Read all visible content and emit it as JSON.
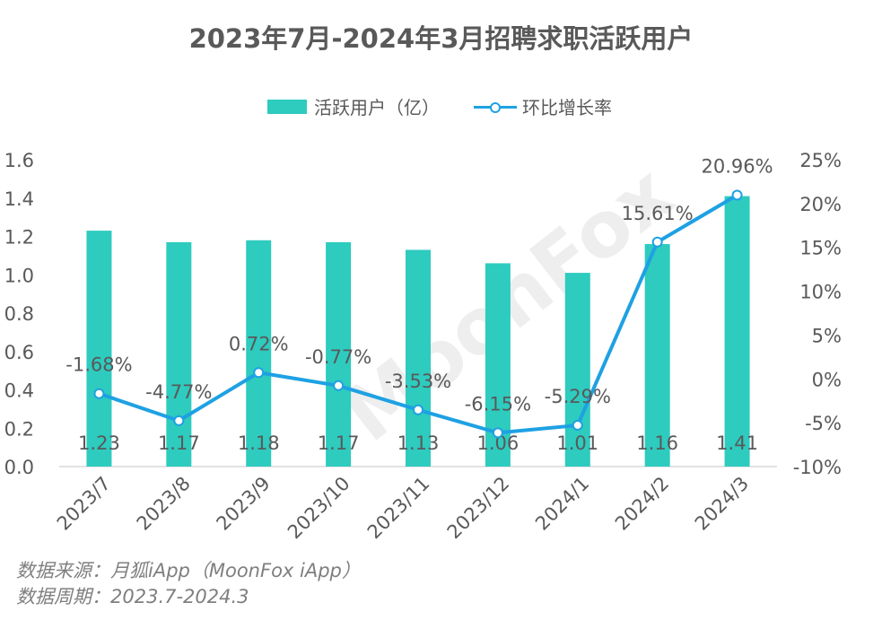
{
  "title": "2023年7月-2024年3月招聘求职活跃用户",
  "legend": {
    "bar_label": "活跃用户（亿）",
    "line_label": "环比增长率"
  },
  "colors": {
    "bar": "#2ecbbf",
    "line": "#1ea1e3",
    "text": "#595959",
    "axis": "#d9d9d9"
  },
  "chart_data": {
    "type": "bar",
    "title": "2023年7月-2024年3月招聘求职活跃用户",
    "categories": [
      "2023/7",
      "2023/8",
      "2023/9",
      "2023/10",
      "2023/11",
      "2023/12",
      "2024/1",
      "2024/2",
      "2024/3"
    ],
    "series": [
      {
        "name": "活跃用户（亿）",
        "type": "bar",
        "axis": "left",
        "values": [
          1.23,
          1.17,
          1.18,
          1.17,
          1.13,
          1.06,
          1.01,
          1.16,
          1.41
        ],
        "labels": [
          "1.23",
          "1.17",
          "1.18",
          "1.17",
          "1.13",
          "1.06",
          "1.01",
          "1.16",
          "1.41"
        ]
      },
      {
        "name": "环比增长率",
        "type": "line",
        "axis": "right",
        "values": [
          -1.68,
          -4.77,
          0.72,
          -0.77,
          -3.53,
          -6.15,
          -5.29,
          15.61,
          20.96
        ],
        "labels": [
          "-1.68%",
          "-4.77%",
          "0.72%",
          "-0.77%",
          "-3.53%",
          "-6.15%",
          "-5.29%",
          "15.61%",
          "20.96%"
        ]
      }
    ],
    "left_axis": {
      "ylim": [
        0,
        1.6
      ],
      "ticks": [
        "0.0",
        "0.2",
        "0.4",
        "0.6",
        "0.8",
        "1.0",
        "1.2",
        "1.4",
        "1.6"
      ]
    },
    "right_axis": {
      "ylim": [
        -10,
        25
      ],
      "ticks": [
        "-10%",
        "-5%",
        "0%",
        "5%",
        "10%",
        "15%",
        "20%",
        "25%"
      ]
    },
    "grid": false,
    "legend_position": "top"
  },
  "watermark": "MoonFox",
  "footnotes": {
    "source": "数据来源：月狐iApp（MoonFox iApp）",
    "period": "数据周期：2023.7-2024.3"
  }
}
